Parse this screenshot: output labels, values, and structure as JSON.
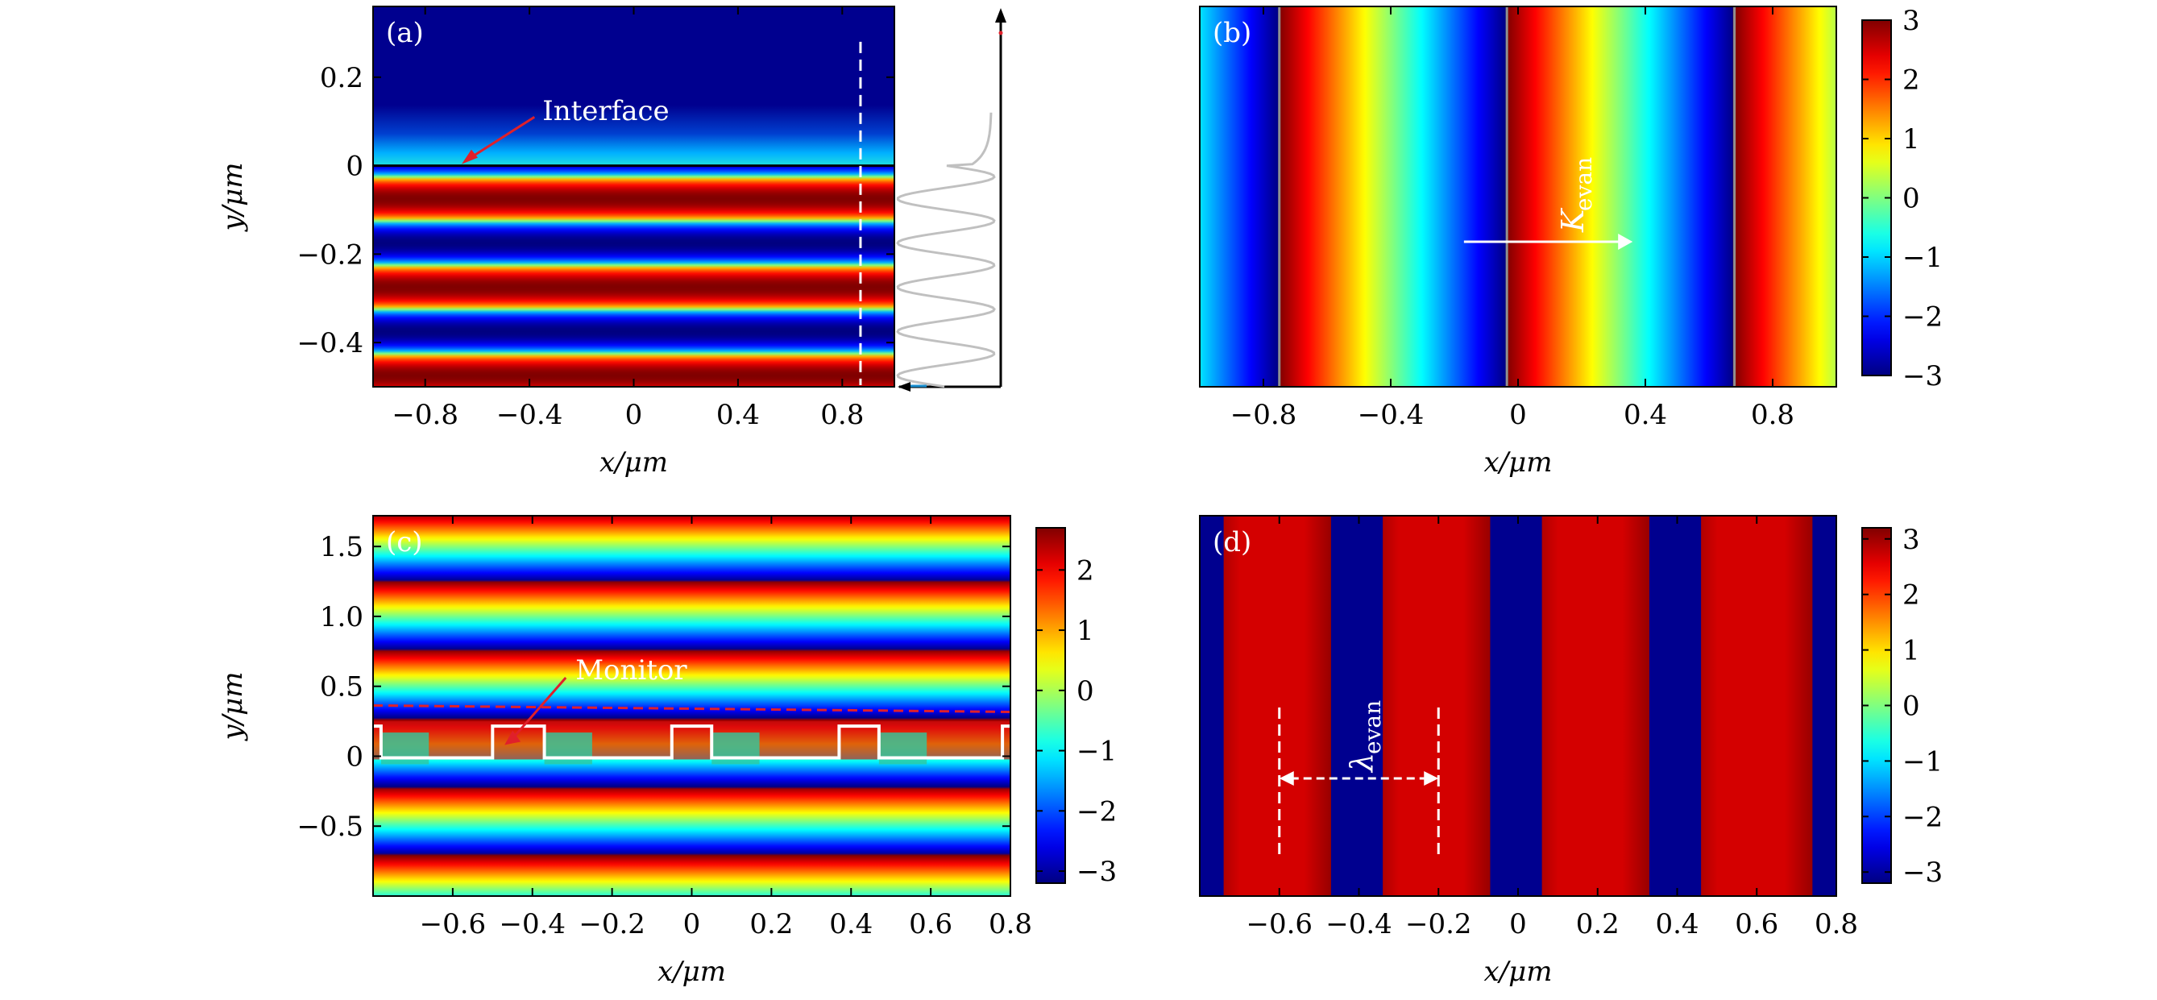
{
  "chart_data": [
    {
      "panel_label": "(a)",
      "type": "heatmap",
      "field": "standing wave below interface, evanescent decay above",
      "xlabel": "x/μm",
      "ylabel": "y/μm",
      "xlim": [
        -1.0,
        1.0
      ],
      "ylim": [
        -0.5,
        0.36
      ],
      "xticks": [
        -0.8,
        -0.4,
        0,
        0.4,
        0.8
      ],
      "xtick_labels": [
        "−0.8",
        "−0.4",
        "0",
        "0.4",
        "0.8"
      ],
      "yticks": [
        0.2,
        0,
        -0.2,
        -0.4
      ],
      "ytick_labels": [
        "0.2",
        "0",
        "−0.2",
        "−0.4"
      ],
      "interface_y": 0,
      "standing_wave_period": 0.2,
      "monitor_line_x": 0.87,
      "annotation": {
        "text": "Interface",
        "x": -0.35,
        "y": 0.11,
        "arrow_to": [
          -0.66,
          0.0
        ]
      },
      "profile_inset": true
    },
    {
      "panel_label": "(b)",
      "type": "heatmap",
      "field": "phase, varies along x",
      "xlabel": "x/μm",
      "xlim": [
        -1.0,
        1.0
      ],
      "xticks": [
        -0.8,
        -0.4,
        0,
        0.4,
        0.8
      ],
      "xtick_labels": [
        "−0.8",
        "−0.4",
        "0",
        "0.4",
        "0.8"
      ],
      "phase_period": 0.715,
      "phase_jumps_x": [
        -0.75,
        -0.035,
        0.68
      ],
      "colorbar": {
        "min": -3,
        "max": 3,
        "ticks": [
          3,
          2,
          1,
          0,
          -1,
          -2,
          -3
        ],
        "tick_labels": [
          "3",
          "2",
          "1",
          "0",
          "−1",
          "−2",
          "−3"
        ]
      },
      "arrow_label": "K",
      "arrow_label_sub": "evan",
      "arrow": {
        "from": [
          -0.17,
          0
        ],
        "to": [
          0.36,
          0
        ]
      }
    },
    {
      "panel_label": "(c)",
      "type": "heatmap",
      "field": "phase, varies along y with metasurface at y=0",
      "xlabel": "x/μm",
      "ylabel": "y/μm",
      "xlim": [
        -0.8,
        0.8
      ],
      "ylim": [
        -1.0,
        1.72
      ],
      "xticks": [
        -0.6,
        -0.4,
        -0.2,
        0,
        0.2,
        0.4,
        0.6,
        0.8
      ],
      "xtick_labels": [
        "−0.6",
        "−0.4",
        "−0.2",
        "0",
        "0.2",
        "0.4",
        "0.6",
        "0.8"
      ],
      "yticks": [
        1.5,
        1.0,
        0.5,
        0,
        -0.5
      ],
      "ytick_labels": [
        "1.5",
        "1.0",
        "0.5",
        "0",
        "−0.5"
      ],
      "colorbar": {
        "min": -3.2,
        "max": 2.7,
        "ticks": [
          2,
          1,
          0,
          -1,
          -2,
          -3
        ],
        "tick_labels": [
          "2",
          "1",
          "0",
          "−1",
          "−2",
          "−3"
        ]
      },
      "structure_x": [
        -0.78,
        -0.5,
        -0.37,
        -0.05,
        0.05,
        0.37,
        0.47,
        0.78
      ],
      "monitor_line_y": 0.34,
      "annotation": {
        "text": "Monitor",
        "x": -0.3,
        "y": 0.55,
        "arrow_to": [
          -0.47,
          0.15
        ]
      }
    },
    {
      "panel_label": "(d)",
      "type": "heatmap",
      "field": "binary phase, varies along x",
      "xlabel": "x/μm",
      "xlim": [
        -0.8,
        0.8
      ],
      "xticks": [
        -0.6,
        -0.4,
        -0.2,
        0,
        0.2,
        0.4,
        0.6,
        0.8
      ],
      "xtick_labels": [
        "−0.6",
        "−0.4",
        "−0.2",
        "0",
        "0.2",
        "0.4",
        "0.6",
        "0.8"
      ],
      "colorbar": {
        "min": -3.2,
        "max": 3.2,
        "ticks": [
          3,
          2,
          1,
          0,
          -1,
          -2,
          -3
        ],
        "tick_labels": [
          "3",
          "2",
          "1",
          "0",
          "−1",
          "−2",
          "−3"
        ]
      },
      "red_bands_x": [
        [
          -0.74,
          -0.47
        ],
        [
          -0.34,
          -0.07
        ],
        [
          0.06,
          0.33
        ],
        [
          0.46,
          0.74
        ]
      ],
      "wavelength_marker": {
        "x1": -0.6,
        "x2": -0.2
      },
      "marker_label": "λ",
      "marker_label_sub": "evan"
    }
  ],
  "colors": {
    "background": "#ffffff",
    "frame": "#000000",
    "annotation_text": "#ffffff",
    "annotation_arrow": "#e0202a",
    "monitor_line": "#e0202a",
    "profile_curve": "#c0c0c0"
  },
  "colormap": "jet"
}
